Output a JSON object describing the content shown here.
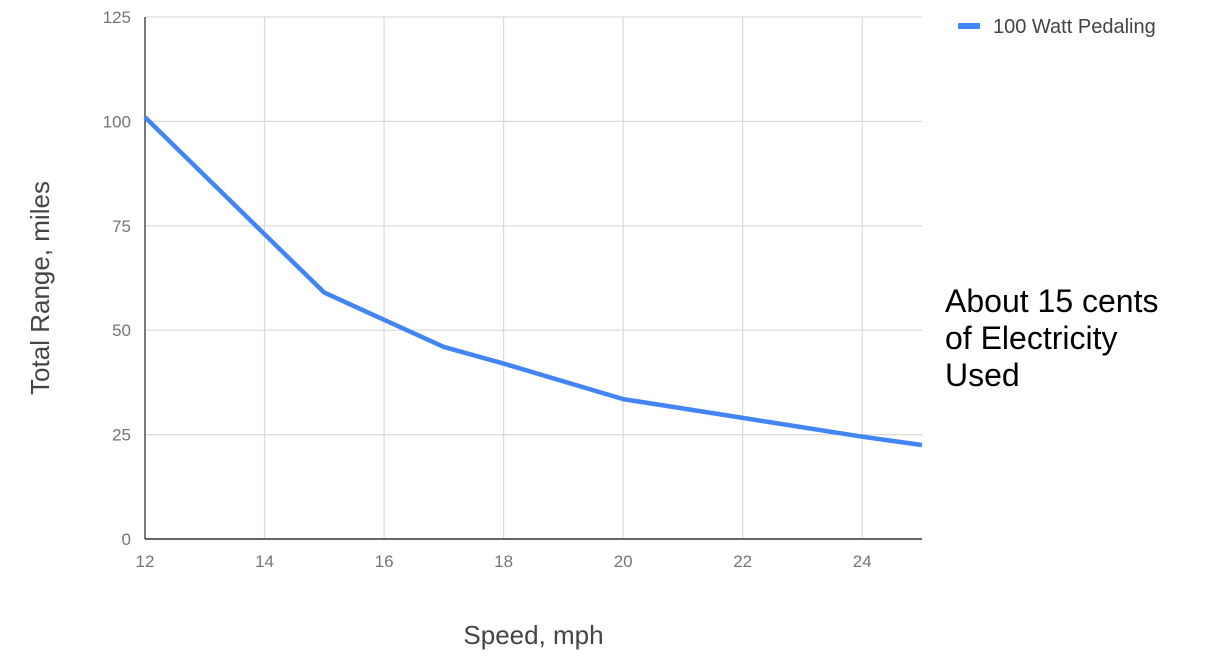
{
  "chart_data": {
    "type": "line",
    "xlabel": "Speed, mph",
    "ylabel": "Total Range, miles",
    "xlim": [
      12,
      25
    ],
    "ylim": [
      0,
      125
    ],
    "x_ticks": [
      12,
      14,
      16,
      18,
      20,
      22,
      24
    ],
    "y_ticks": [
      0,
      25,
      50,
      75,
      100,
      125
    ],
    "grid": true,
    "legend_position": "top-right",
    "series": [
      {
        "name": "100 Watt Pedaling",
        "color": "#4285f4",
        "x": [
          12,
          14,
          15,
          16,
          17,
          18,
          20,
          22,
          24,
          25
        ],
        "y": [
          101,
          73,
          59,
          52.5,
          46,
          42,
          33.5,
          29,
          24.5,
          22.5
        ]
      }
    ]
  },
  "annotation": {
    "lines": [
      "About 15 cents",
      "of Electricity",
      "Used"
    ]
  }
}
